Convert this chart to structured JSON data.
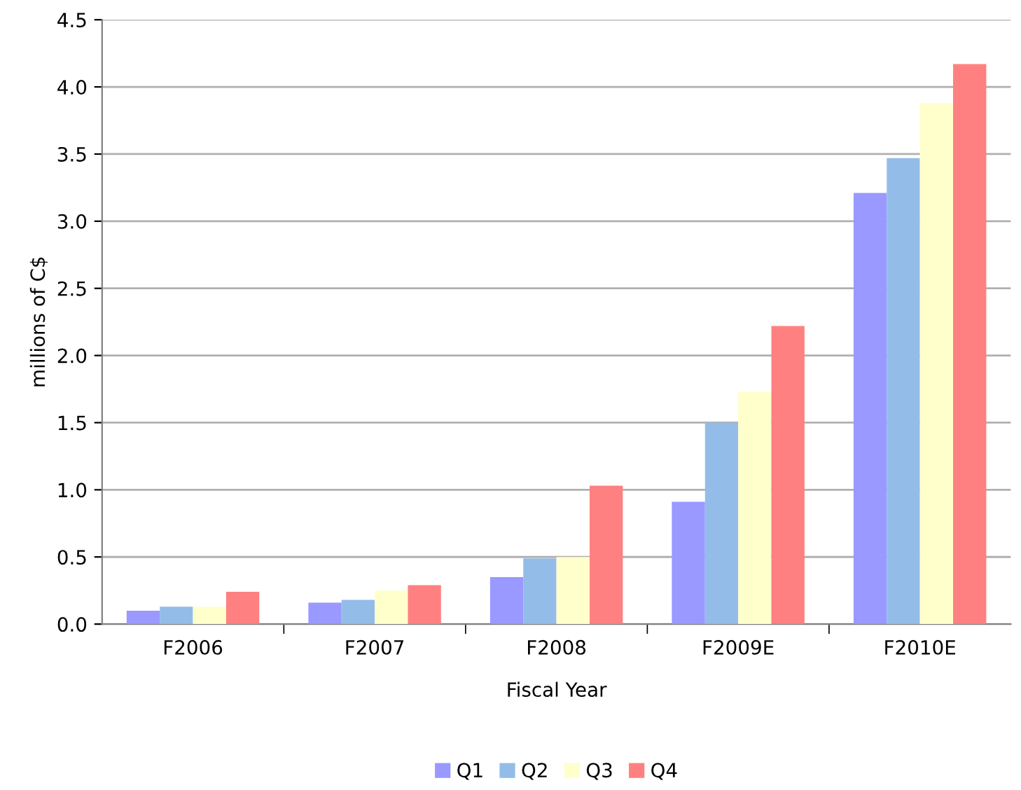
{
  "chart_data": {
    "type": "bar",
    "xlabel": "Fiscal Year",
    "ylabel": "millions of C$",
    "categories": [
      "F2006",
      "F2007",
      "F2008",
      "F2009E",
      "F2010E"
    ],
    "series": [
      {
        "name": "Q1",
        "color": "#9999ff",
        "values": [
          0.1,
          0.16,
          0.35,
          0.91,
          3.21
        ]
      },
      {
        "name": "Q2",
        "color": "#93bde8",
        "values": [
          0.13,
          0.18,
          0.49,
          1.5,
          3.47
        ]
      },
      {
        "name": "Q3",
        "color": "#ffffcc",
        "values": [
          0.13,
          0.25,
          0.5,
          1.73,
          3.88
        ]
      },
      {
        "name": "Q4",
        "color": "#ff8080",
        "values": [
          0.24,
          0.29,
          1.03,
          2.22,
          4.17
        ]
      }
    ],
    "ylim": [
      0,
      4.5
    ],
    "yticks": [
      {
        "value": 0,
        "label": "0.0"
      },
      {
        "value": 0.5,
        "label": "0.5"
      },
      {
        "value": 1,
        "label": "1.0"
      },
      {
        "value": 1.5,
        "label": "1.5"
      },
      {
        "value": 2,
        "label": "2.0"
      },
      {
        "value": 2.5,
        "label": "2.5"
      },
      {
        "value": 3,
        "label": "3.0"
      },
      {
        "value": 3.5,
        "label": "3.5"
      },
      {
        "value": 4,
        "label": "4.0"
      },
      {
        "value": 4.5,
        "label": "4.5"
      }
    ],
    "grid": "y",
    "legend": "bottom"
  }
}
